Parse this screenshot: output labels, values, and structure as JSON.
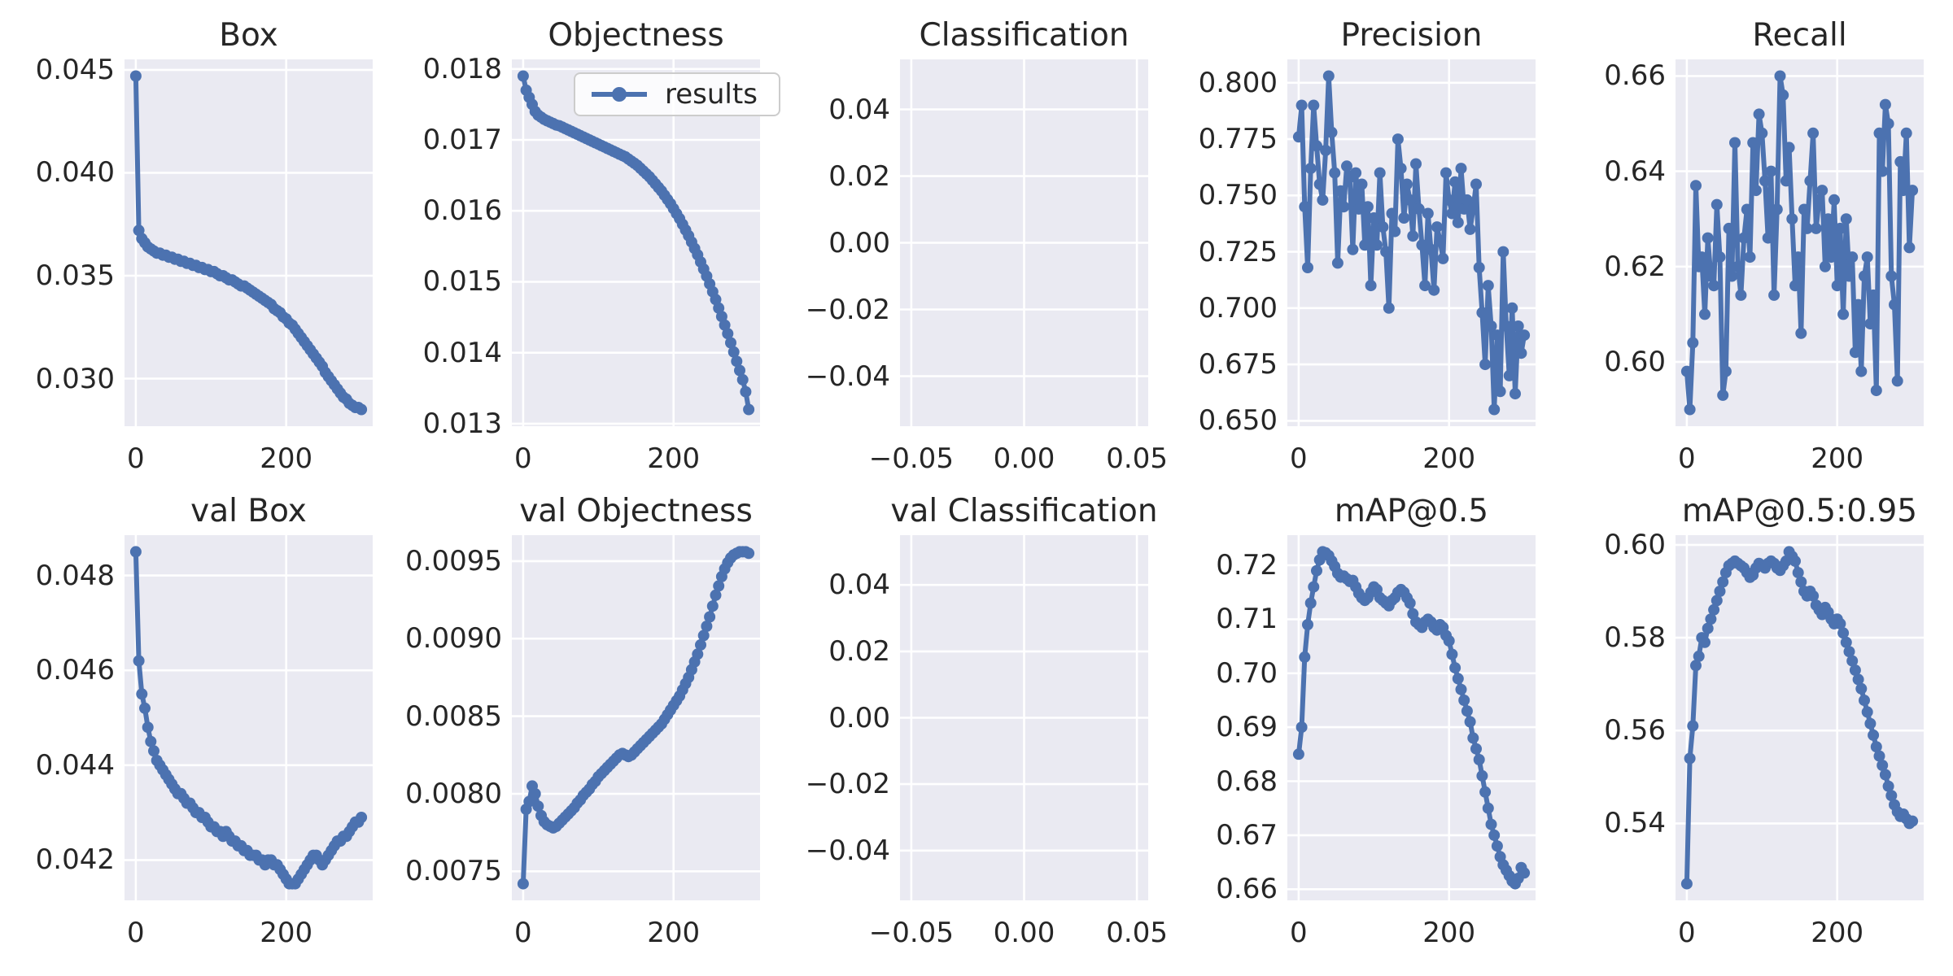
{
  "figure": {
    "kind": "training-results-grid",
    "rows": 2,
    "cols": 5
  },
  "style": {
    "figure_background": "#ffffff",
    "axes_background": "#eaeaf2",
    "grid_color": "#ffffff",
    "line_color": "#4c72b0",
    "text_color": "#262626",
    "legend_border_color": "#cccccc",
    "legend_background": "rgba(255,255,255,0.8)"
  },
  "legend": {
    "label": "results"
  },
  "chart_data": [
    {
      "title": "Box",
      "type": "line",
      "row": 0,
      "col": 0,
      "xlim": [
        -15,
        315
      ],
      "ylim": [
        0.02769,
        0.04551
      ],
      "xticks": [
        0,
        200
      ],
      "xtick_labels": [
        "0",
        "200"
      ],
      "yticks": [
        0.03,
        0.035,
        0.04,
        0.045
      ],
      "ytick_labels": [
        "0.030",
        "0.035",
        "0.040",
        "0.045"
      ],
      "series": [
        {
          "name": "results",
          "x_start": 0,
          "x_step": 4,
          "values": [
            0.0447,
            0.0372,
            0.0368,
            0.0366,
            0.0364,
            0.0363,
            0.0362,
            0.0361,
            0.0361,
            0.036,
            0.036,
            0.0359,
            0.0359,
            0.0358,
            0.0358,
            0.0357,
            0.0357,
            0.0356,
            0.0356,
            0.0355,
            0.0355,
            0.0354,
            0.0354,
            0.0353,
            0.0353,
            0.0352,
            0.0352,
            0.0351,
            0.035,
            0.035,
            0.0349,
            0.0348,
            0.0348,
            0.0347,
            0.0346,
            0.0345,
            0.0345,
            0.0344,
            0.0343,
            0.0342,
            0.0341,
            0.034,
            0.0339,
            0.0338,
            0.0337,
            0.0336,
            0.0334,
            0.0333,
            0.0332,
            0.033,
            0.0329,
            0.0327,
            0.0326,
            0.0324,
            0.0322,
            0.032,
            0.0318,
            0.0316,
            0.0314,
            0.0312,
            0.031,
            0.0308,
            0.0306,
            0.0303,
            0.0301,
            0.0299,
            0.0297,
            0.0295,
            0.0293,
            0.0291,
            0.029,
            0.0288,
            0.0287,
            0.0286,
            0.0286,
            0.0285
          ]
        }
      ]
    },
    {
      "title": "Objectness",
      "type": "line",
      "row": 0,
      "col": 1,
      "show_legend": true,
      "xlim": [
        -15,
        315
      ],
      "ylim": [
        0.012965,
        0.018135
      ],
      "xticks": [
        0,
        200
      ],
      "xtick_labels": [
        "0",
        "200"
      ],
      "yticks": [
        0.013,
        0.014,
        0.015,
        0.016,
        0.017,
        0.018
      ],
      "ytick_labels": [
        "0.013",
        "0.014",
        "0.015",
        "0.016",
        "0.017",
        "0.018"
      ],
      "series": [
        {
          "name": "results",
          "x_start": 0,
          "x_step": 4,
          "values": [
            0.0179,
            0.0177,
            0.0176,
            0.0175,
            0.0174,
            0.01735,
            0.01732,
            0.01729,
            0.01727,
            0.01725,
            0.01723,
            0.01721,
            0.0172,
            0.01718,
            0.01716,
            0.01714,
            0.01712,
            0.0171,
            0.01708,
            0.01706,
            0.01704,
            0.01702,
            0.017,
            0.01698,
            0.01696,
            0.01694,
            0.01692,
            0.0169,
            0.01688,
            0.01686,
            0.01684,
            0.01682,
            0.0168,
            0.01678,
            0.01676,
            0.01673,
            0.0167,
            0.01667,
            0.01664,
            0.0166,
            0.01656,
            0.01652,
            0.01648,
            0.01643,
            0.01638,
            0.01633,
            0.01628,
            0.01622,
            0.01616,
            0.0161,
            0.01603,
            0.01596,
            0.01589,
            0.01581,
            0.01573,
            0.01565,
            0.01556,
            0.01547,
            0.01538,
            0.01528,
            0.01518,
            0.01508,
            0.01497,
            0.01486,
            0.01475,
            0.01463,
            0.01451,
            0.01439,
            0.01427,
            0.01414,
            0.01401,
            0.01388,
            0.01375,
            0.01362,
            0.01345,
            0.0132
          ]
        }
      ]
    },
    {
      "title": "Classification",
      "type": "line",
      "row": 0,
      "col": 2,
      "xlim": [
        -0.055,
        0.055
      ],
      "ylim": [
        -0.055,
        0.055
      ],
      "xticks": [
        -0.05,
        0.0,
        0.05
      ],
      "xtick_labels": [
        "−0.05",
        "0.00",
        "0.05"
      ],
      "yticks": [
        0.04,
        0.02,
        0.0,
        -0.02,
        -0.04
      ],
      "ytick_labels": [
        "0.04",
        "0.02",
        "0.00",
        "−0.02",
        "−0.04"
      ],
      "series": []
    },
    {
      "title": "Precision",
      "type": "line",
      "row": 0,
      "col": 3,
      "xlim": [
        -15,
        315
      ],
      "ylim": [
        0.6476,
        0.8104
      ],
      "xticks": [
        0,
        200
      ],
      "xtick_labels": [
        "0",
        "200"
      ],
      "yticks": [
        0.65,
        0.675,
        0.7,
        0.725,
        0.75,
        0.775,
        0.8
      ],
      "ytick_labels": [
        "0.650",
        "0.675",
        "0.700",
        "0.725",
        "0.750",
        "0.775",
        "0.800"
      ],
      "series": [
        {
          "name": "results",
          "x_start": 0,
          "x_step": 4,
          "values": [
            0.776,
            0.79,
            0.745,
            0.718,
            0.762,
            0.79,
            0.772,
            0.755,
            0.748,
            0.77,
            0.803,
            0.778,
            0.76,
            0.72,
            0.752,
            0.745,
            0.763,
            0.758,
            0.726,
            0.76,
            0.744,
            0.755,
            0.728,
            0.745,
            0.71,
            0.74,
            0.728,
            0.76,
            0.736,
            0.725,
            0.7,
            0.742,
            0.734,
            0.775,
            0.762,
            0.74,
            0.755,
            0.748,
            0.732,
            0.764,
            0.744,
            0.728,
            0.71,
            0.742,
            0.726,
            0.708,
            0.736,
            0.73,
            0.722,
            0.76,
            0.748,
            0.742,
            0.756,
            0.738,
            0.762,
            0.744,
            0.748,
            0.735,
            0.744,
            0.755,
            0.718,
            0.698,
            0.675,
            0.71,
            0.692,
            0.655,
            0.688,
            0.663,
            0.725,
            0.692,
            0.67,
            0.7,
            0.662,
            0.692,
            0.68,
            0.688
          ]
        }
      ]
    },
    {
      "title": "Recall",
      "type": "line",
      "row": 0,
      "col": 4,
      "xlim": [
        -15,
        315
      ],
      "ylim": [
        0.5865,
        0.6635
      ],
      "xticks": [
        0,
        200
      ],
      "xtick_labels": [
        "0",
        "200"
      ],
      "yticks": [
        0.6,
        0.62,
        0.64,
        0.66
      ],
      "ytick_labels": [
        "0.60",
        "0.62",
        "0.64",
        "0.66"
      ],
      "series": [
        {
          "name": "results",
          "x_start": 0,
          "x_step": 4,
          "values": [
            0.598,
            0.59,
            0.604,
            0.637,
            0.62,
            0.622,
            0.61,
            0.626,
            0.618,
            0.616,
            0.633,
            0.622,
            0.593,
            0.598,
            0.628,
            0.618,
            0.646,
            0.62,
            0.614,
            0.626,
            0.632,
            0.622,
            0.646,
            0.636,
            0.652,
            0.648,
            0.638,
            0.626,
            0.64,
            0.614,
            0.632,
            0.66,
            0.656,
            0.638,
            0.645,
            0.63,
            0.616,
            0.622,
            0.606,
            0.632,
            0.628,
            0.638,
            0.648,
            0.628,
            0.634,
            0.636,
            0.62,
            0.63,
            0.622,
            0.634,
            0.616,
            0.628,
            0.61,
            0.63,
            0.618,
            0.622,
            0.602,
            0.612,
            0.598,
            0.618,
            0.622,
            0.608,
            0.614,
            0.594,
            0.648,
            0.64,
            0.654,
            0.65,
            0.618,
            0.612,
            0.596,
            0.642,
            0.636,
            0.648,
            0.624,
            0.636
          ]
        }
      ]
    },
    {
      "title": "val Box",
      "type": "line",
      "row": 1,
      "col": 0,
      "xlim": [
        -15,
        315
      ],
      "ylim": [
        0.04115,
        0.04885
      ],
      "xticks": [
        0,
        200
      ],
      "xtick_labels": [
        "0",
        "200"
      ],
      "yticks": [
        0.042,
        0.044,
        0.046,
        0.048
      ],
      "ytick_labels": [
        "0.042",
        "0.044",
        "0.046",
        "0.048"
      ],
      "series": [
        {
          "name": "results",
          "x_start": 0,
          "x_step": 4,
          "values": [
            0.0485,
            0.0462,
            0.0455,
            0.0452,
            0.0448,
            0.0445,
            0.0443,
            0.0441,
            0.044,
            0.0439,
            0.0438,
            0.0437,
            0.0436,
            0.0435,
            0.0434,
            0.0434,
            0.0433,
            0.0432,
            0.0432,
            0.0431,
            0.043,
            0.043,
            0.0429,
            0.0429,
            0.0428,
            0.0427,
            0.0427,
            0.0426,
            0.0426,
            0.0425,
            0.0426,
            0.0425,
            0.0424,
            0.0424,
            0.0423,
            0.0423,
            0.0422,
            0.0422,
            0.0421,
            0.0421,
            0.0421,
            0.042,
            0.042,
            0.0419,
            0.042,
            0.042,
            0.0419,
            0.0419,
            0.0418,
            0.0417,
            0.0416,
            0.0415,
            0.0415,
            0.0415,
            0.0416,
            0.0417,
            0.0418,
            0.0419,
            0.042,
            0.0421,
            0.0421,
            0.042,
            0.0419,
            0.042,
            0.0421,
            0.0422,
            0.0423,
            0.0424,
            0.0424,
            0.0425,
            0.0425,
            0.0426,
            0.0427,
            0.0428,
            0.0428,
            0.0429
          ]
        }
      ]
    },
    {
      "title": "val Objectness",
      "type": "line",
      "row": 1,
      "col": 1,
      "xlim": [
        -15,
        315
      ],
      "ylim": [
        0.007313,
        0.009667
      ],
      "xticks": [
        0,
        200
      ],
      "xtick_labels": [
        "0",
        "200"
      ],
      "yticks": [
        0.0075,
        0.008,
        0.0085,
        0.009,
        0.0095
      ],
      "ytick_labels": [
        "0.0075",
        "0.0080",
        "0.0085",
        "0.0090",
        "0.0095"
      ],
      "series": [
        {
          "name": "results",
          "x_start": 0,
          "x_step": 4,
          "values": [
            0.00742,
            0.0079,
            0.00795,
            0.00805,
            0.008,
            0.00792,
            0.00786,
            0.00782,
            0.0078,
            0.00779,
            0.00778,
            0.00779,
            0.00781,
            0.00783,
            0.00785,
            0.00787,
            0.00789,
            0.00791,
            0.00794,
            0.00796,
            0.00799,
            0.00801,
            0.00803,
            0.00806,
            0.00808,
            0.00811,
            0.00813,
            0.00815,
            0.00817,
            0.00819,
            0.00821,
            0.00823,
            0.00825,
            0.00826,
            0.00825,
            0.00824,
            0.00825,
            0.00827,
            0.00829,
            0.00831,
            0.00833,
            0.00835,
            0.00837,
            0.00839,
            0.00841,
            0.00843,
            0.00845,
            0.00848,
            0.00851,
            0.00854,
            0.00857,
            0.0086,
            0.00863,
            0.00867,
            0.00871,
            0.00875,
            0.0088,
            0.00885,
            0.0089,
            0.00896,
            0.00902,
            0.00908,
            0.00914,
            0.00921,
            0.00928,
            0.00934,
            0.0094,
            0.00945,
            0.00949,
            0.00952,
            0.00954,
            0.00955,
            0.00956,
            0.00956,
            0.00956,
            0.00955
          ]
        }
      ]
    },
    {
      "title": "val Classification",
      "type": "line",
      "row": 1,
      "col": 2,
      "xlim": [
        -0.055,
        0.055
      ],
      "ylim": [
        -0.055,
        0.055
      ],
      "xticks": [
        -0.05,
        0.0,
        0.05
      ],
      "xtick_labels": [
        "−0.05",
        "0.00",
        "0.05"
      ],
      "yticks": [
        0.04,
        0.02,
        0.0,
        -0.02,
        -0.04
      ],
      "ytick_labels": [
        "0.04",
        "0.02",
        "0.00",
        "−0.02",
        "−0.04"
      ],
      "series": []
    },
    {
      "title": "mAP@0.5",
      "type": "line",
      "row": 1,
      "col": 3,
      "xlim": [
        -15,
        315
      ],
      "ylim": [
        0.65793,
        0.72558
      ],
      "xticks": [
        0,
        200
      ],
      "xtick_labels": [
        "0",
        "200"
      ],
      "yticks": [
        0.66,
        0.67,
        0.68,
        0.69,
        0.7,
        0.71,
        0.72
      ],
      "ytick_labels": [
        "0.66",
        "0.67",
        "0.68",
        "0.69",
        "0.70",
        "0.71",
        "0.72"
      ],
      "series": [
        {
          "name": "results",
          "x_start": 0,
          "x_step": 4,
          "values": [
            0.685,
            0.69,
            0.703,
            0.709,
            0.713,
            0.716,
            0.719,
            0.721,
            0.7225,
            0.7223,
            0.7218,
            0.7208,
            0.7198,
            0.7185,
            0.7178,
            0.718,
            0.7175,
            0.717,
            0.7172,
            0.716,
            0.7148,
            0.714,
            0.7135,
            0.714,
            0.715,
            0.716,
            0.7155,
            0.714,
            0.7135,
            0.713,
            0.7125,
            0.7135,
            0.714,
            0.715,
            0.7155,
            0.715,
            0.714,
            0.713,
            0.711,
            0.7095,
            0.709,
            0.7085,
            0.7095,
            0.71,
            0.7095,
            0.7085,
            0.708,
            0.709,
            0.7085,
            0.707,
            0.706,
            0.7035,
            0.701,
            0.699,
            0.697,
            0.695,
            0.693,
            0.691,
            0.688,
            0.686,
            0.684,
            0.681,
            0.678,
            0.675,
            0.672,
            0.67,
            0.668,
            0.666,
            0.6645,
            0.6635,
            0.6625,
            0.6615,
            0.661,
            0.662,
            0.664,
            0.663
          ]
        }
      ]
    },
    {
      "title": "mAP@0.5:0.95",
      "type": "line",
      "row": 1,
      "col": 4,
      "xlim": [
        -15,
        315
      ],
      "ylim": [
        0.52343,
        0.60208
      ],
      "xticks": [
        0,
        200
      ],
      "xtick_labels": [
        "0",
        "200"
      ],
      "yticks": [
        0.54,
        0.56,
        0.58,
        0.6
      ],
      "ytick_labels": [
        "0.54",
        "0.56",
        "0.58",
        "0.60"
      ],
      "series": [
        {
          "name": "results",
          "x_start": 0,
          "x_step": 4,
          "values": [
            0.527,
            0.554,
            0.561,
            0.574,
            0.576,
            0.58,
            0.579,
            0.582,
            0.584,
            0.586,
            0.588,
            0.59,
            0.592,
            0.594,
            0.5955,
            0.596,
            0.5965,
            0.596,
            0.5955,
            0.595,
            0.594,
            0.593,
            0.5935,
            0.595,
            0.596,
            0.5955,
            0.595,
            0.596,
            0.5965,
            0.596,
            0.595,
            0.5945,
            0.5955,
            0.5965,
            0.5985,
            0.5975,
            0.5965,
            0.594,
            0.592,
            0.59,
            0.589,
            0.59,
            0.589,
            0.587,
            0.586,
            0.585,
            0.5865,
            0.5855,
            0.584,
            0.583,
            0.584,
            0.583,
            0.581,
            0.579,
            0.577,
            0.575,
            0.573,
            0.571,
            0.569,
            0.5665,
            0.564,
            0.5615,
            0.559,
            0.5565,
            0.5545,
            0.5525,
            0.5505,
            0.548,
            0.546,
            0.544,
            0.5425,
            0.5415,
            0.542,
            0.541,
            0.54,
            0.5405
          ]
        }
      ]
    }
  ]
}
